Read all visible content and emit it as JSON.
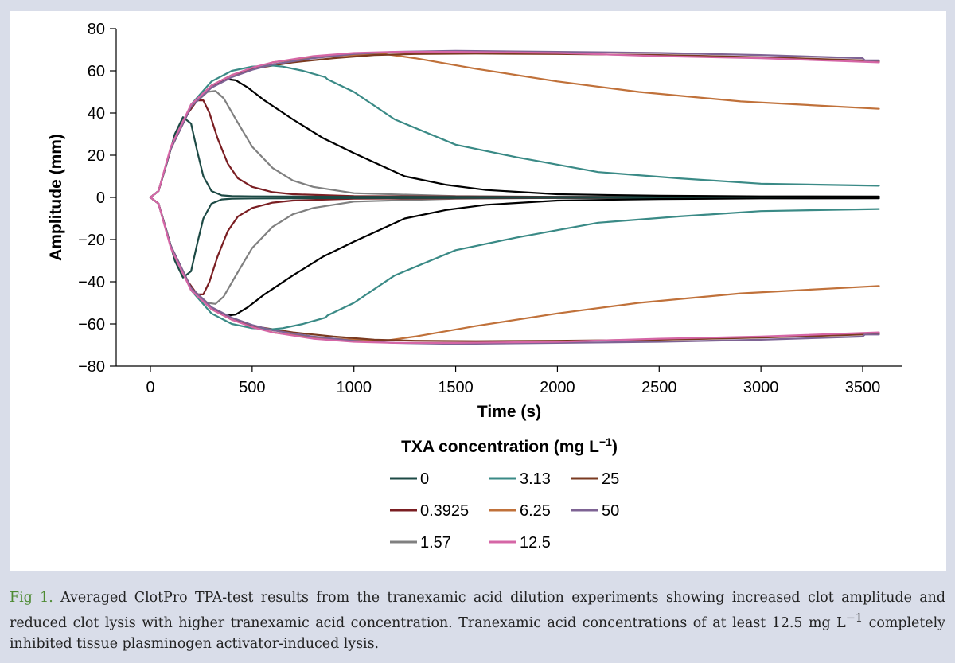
{
  "chart_data": {
    "type": "line",
    "title": "",
    "xlabel": "Time (s)",
    "ylabel": "Amplitude (mm)",
    "xlim": [
      0,
      3600
    ],
    "ylim": [
      -80,
      80
    ],
    "xticks": [
      "0",
      "500",
      "1000",
      "1500",
      "2000",
      "2500",
      "3000",
      "3500"
    ],
    "yticks": [
      "80",
      "60",
      "40",
      "20",
      "0",
      "−20",
      "−40",
      "−60",
      "−80"
    ],
    "legend_title": "TXA concentration (mg L",
    "legend_title_sup": "−1",
    "legend_title_end": ")",
    "mirrored": true,
    "series": [
      {
        "name": "0",
        "color": "#1d4a45",
        "x": [
          0,
          40,
          80,
          120,
          160,
          200,
          230,
          260,
          300,
          350,
          400,
          500,
          700,
          1000,
          2000,
          3000,
          3580
        ],
        "y": [
          0,
          3,
          16,
          30,
          38,
          35,
          22,
          10,
          3,
          1,
          0.6,
          0.5,
          0.4,
          0.3,
          0.2,
          0.2,
          0.2
        ]
      },
      {
        "name": "3.13",
        "color": "#3a8a86",
        "x": [
          0,
          40,
          100,
          200,
          300,
          400,
          500,
          600,
          650,
          750,
          860,
          870,
          1000,
          1200,
          1500,
          1800,
          2200,
          2600,
          3000,
          3580
        ],
        "y": [
          0,
          3,
          23,
          44,
          55,
          60,
          62,
          62.5,
          62,
          60,
          57,
          56,
          50,
          37,
          25,
          19,
          12,
          9,
          6.5,
          5.5
        ]
      },
      {
        "name": "25",
        "color": "#7a3a20",
        "x": [
          0,
          40,
          100,
          200,
          300,
          400,
          500,
          700,
          900,
          1100,
          1300,
          1600,
          2000,
          2500,
          3000,
          3500,
          3580
        ],
        "y": [
          0,
          3,
          23,
          43,
          53,
          58,
          61,
          64,
          66,
          67.5,
          68,
          68.2,
          68,
          67.5,
          66.5,
          65,
          64.5
        ]
      },
      {
        "name": "0.3925",
        "color": "#7a1e22",
        "x": [
          0,
          40,
          100,
          170,
          230,
          260,
          290,
          330,
          380,
          430,
          500,
          600,
          700,
          1000,
          2000,
          3580
        ],
        "y": [
          0,
          3,
          23,
          38,
          46,
          46,
          40,
          28,
          16,
          9,
          5,
          2.5,
          1.5,
          0.6,
          0.3,
          0.2
        ]
      },
      {
        "name": "6.25",
        "color": "#c0713a",
        "x": [
          0,
          40,
          100,
          200,
          300,
          400,
          500,
          600,
          800,
          1000,
          1150,
          1300,
          1600,
          2000,
          2400,
          2900,
          3580
        ],
        "y": [
          0,
          3,
          23,
          44,
          53,
          58,
          61,
          64,
          66.5,
          67.5,
          68,
          66,
          61,
          55,
          50,
          45.5,
          42
        ]
      },
      {
        "name": "50",
        "color": "#7e6394",
        "x": [
          0,
          40,
          100,
          200,
          300,
          400,
          500,
          600,
          800,
          1000,
          1200,
          1500,
          2000,
          2500,
          3000,
          3500,
          3510,
          3580
        ],
        "y": [
          0,
          3,
          23,
          43,
          52,
          57,
          60.5,
          63,
          66,
          68,
          69,
          69.5,
          69,
          68.5,
          67.5,
          66,
          65,
          65
        ]
      },
      {
        "name": "1.57",
        "color": "#808080",
        "x": [
          0,
          40,
          100,
          200,
          280,
          320,
          360,
          420,
          500,
          600,
          700,
          800,
          1000,
          1500,
          2000,
          3580
        ],
        "y": [
          0,
          3,
          23,
          43,
          50,
          50.5,
          47,
          37,
          24,
          14,
          8,
          5,
          2,
          0.6,
          0.3,
          0.2
        ]
      },
      {
        "name": "12.5",
        "color": "#d566a6",
        "x": [
          0,
          40,
          100,
          200,
          300,
          400,
          500,
          600,
          800,
          1000,
          1200,
          1500,
          2000,
          2500,
          3000,
          3580
        ],
        "y": [
          0,
          3,
          24,
          44,
          53,
          58,
          61.5,
          64,
          67,
          68.5,
          69,
          69,
          68.5,
          67,
          66,
          64
        ]
      },
      {
        "name": "0-ref",
        "legend": false,
        "color": "#000000",
        "x": [
          0,
          40,
          100,
          200,
          300,
          380,
          420,
          480,
          560,
          700,
          850,
          1000,
          1250,
          1450,
          1650,
          2000,
          2500,
          3000,
          3580
        ],
        "y": [
          0,
          3,
          23,
          43,
          53,
          56,
          55.5,
          52,
          46,
          37,
          28,
          21,
          10,
          6,
          3.5,
          1.5,
          0.8,
          0.5,
          0.4
        ]
      }
    ]
  },
  "legend_rows": [
    [
      {
        "label": "0",
        "color": "#1d4a45"
      },
      {
        "label": "3.13",
        "color": "#3a8a86"
      },
      {
        "label": "25",
        "color": "#7a3a20"
      }
    ],
    [
      {
        "label": "0.3925",
        "color": "#7a1e22"
      },
      {
        "label": "6.25",
        "color": "#c0713a"
      },
      {
        "label": "50",
        "color": "#7e6394"
      }
    ],
    [
      {
        "label": "1.57",
        "color": "#808080"
      },
      {
        "label": "12.5",
        "color": "#d566a6"
      }
    ]
  ],
  "caption": {
    "label": "Fig 1.",
    "text_a": " Averaged ClotPro TPA-test results from the tranexamic acid dilution experiments showing increased clot amplitude and reduced clot lysis with higher tranexamic acid concentration. Tranexamic acid concentrations of at least 12.5 mg L",
    "sup": "−1",
    "text_b": " completely inhibited tissue plasminogen activator-induced lysis."
  }
}
